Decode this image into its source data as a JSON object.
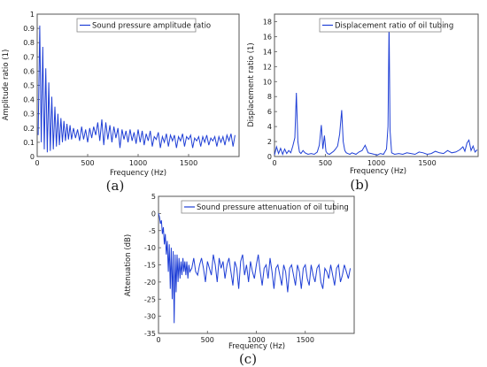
{
  "chart_data": [
    {
      "id": "a",
      "type": "line",
      "caption": "(a)",
      "xlabel": "Frequency (Hz)",
      "ylabel": "Amplitude ratio (1)",
      "xlim": [
        0,
        2000
      ],
      "ylim": [
        0,
        1
      ],
      "xticks": [
        0,
        500,
        1000,
        1500
      ],
      "yticks": [
        0,
        0.1,
        0.2,
        0.3,
        0.4,
        0.5,
        0.6,
        0.7,
        0.8,
        0.9,
        1
      ],
      "yticklabels": [
        "0",
        "0.1",
        "0.2",
        "0.3",
        "0.4",
        "0.5",
        "0.6",
        "0.7",
        "0.8",
        "0.9",
        "1"
      ],
      "legend_position": "top-right",
      "series": [
        {
          "name": "Sound pressure amplitude ratio",
          "color": "#1f3fd6",
          "x": [
            10,
            25,
            40,
            55,
            70,
            85,
            100,
            115,
            130,
            145,
            160,
            175,
            190,
            205,
            220,
            235,
            250,
            265,
            280,
            295,
            310,
            325,
            340,
            360,
            380,
            400,
            420,
            440,
            460,
            480,
            500,
            520,
            540,
            560,
            580,
            600,
            620,
            640,
            660,
            680,
            700,
            720,
            740,
            760,
            780,
            800,
            820,
            840,
            860,
            880,
            900,
            920,
            940,
            960,
            980,
            1000,
            1020,
            1040,
            1060,
            1080,
            1100,
            1120,
            1140,
            1160,
            1180,
            1200,
            1220,
            1240,
            1260,
            1280,
            1300,
            1320,
            1340,
            1360,
            1380,
            1400,
            1420,
            1440,
            1460,
            1480,
            1500,
            1520,
            1540,
            1560,
            1580,
            1600,
            1620,
            1640,
            1660,
            1680,
            1700,
            1720,
            1740,
            1760,
            1780,
            1800,
            1820,
            1840,
            1860,
            1880,
            1900,
            1920,
            1940,
            1960
          ],
          "y": [
            0.15,
            0.92,
            0.1,
            0.77,
            0.05,
            0.62,
            0.03,
            0.52,
            0.04,
            0.42,
            0.05,
            0.35,
            0.07,
            0.3,
            0.08,
            0.27,
            0.1,
            0.25,
            0.11,
            0.23,
            0.12,
            0.22,
            0.12,
            0.2,
            0.13,
            0.19,
            0.11,
            0.21,
            0.12,
            0.19,
            0.1,
            0.2,
            0.13,
            0.21,
            0.15,
            0.24,
            0.11,
            0.26,
            0.08,
            0.24,
            0.12,
            0.22,
            0.1,
            0.21,
            0.13,
            0.2,
            0.06,
            0.19,
            0.12,
            0.18,
            0.1,
            0.19,
            0.11,
            0.17,
            0.09,
            0.19,
            0.1,
            0.18,
            0.08,
            0.16,
            0.11,
            0.18,
            0.07,
            0.14,
            0.12,
            0.17,
            0.06,
            0.14,
            0.1,
            0.16,
            0.07,
            0.15,
            0.11,
            0.15,
            0.06,
            0.14,
            0.11,
            0.16,
            0.07,
            0.14,
            0.12,
            0.15,
            0.06,
            0.13,
            0.11,
            0.14,
            0.07,
            0.14,
            0.1,
            0.15,
            0.08,
            0.13,
            0.11,
            0.14,
            0.07,
            0.14,
            0.1,
            0.14,
            0.08,
            0.15,
            0.11,
            0.16,
            0.07,
            0.15
          ]
        }
      ]
    },
    {
      "id": "b",
      "type": "line",
      "caption": "(b)",
      "xlabel": "Frequency (Hz)",
      "ylabel": "Displacement ratio (1)",
      "xlim": [
        0,
        2000
      ],
      "ylim": [
        0,
        19
      ],
      "xticks": [
        0,
        500,
        1000,
        1500
      ],
      "yticks": [
        0,
        2,
        4,
        6,
        8,
        10,
        12,
        14,
        16,
        18
      ],
      "yticklabels": [
        "0",
        "2",
        "4",
        "6",
        "8",
        "10",
        "12",
        "14",
        "16",
        "18"
      ],
      "legend_position": "top-right",
      "series": [
        {
          "name": "Displacement ratio of oil tubing",
          "color": "#1f3fd6",
          "x": [
            0,
            20,
            40,
            60,
            80,
            100,
            120,
            140,
            160,
            180,
            200,
            215,
            230,
            245,
            260,
            280,
            300,
            330,
            360,
            390,
            420,
            440,
            460,
            475,
            490,
            505,
            520,
            540,
            560,
            580,
            600,
            620,
            640,
            660,
            675,
            690,
            705,
            720,
            740,
            760,
            780,
            800,
            830,
            860,
            890,
            920,
            950,
            980,
            1010,
            1040,
            1070,
            1100,
            1115,
            1125,
            1135,
            1150,
            1180,
            1220,
            1260,
            1300,
            1340,
            1380,
            1420,
            1460,
            1500,
            1540,
            1580,
            1620,
            1660,
            1700,
            1740,
            1780,
            1820,
            1850,
            1870,
            1890,
            1910,
            1930,
            1950,
            1970,
            1990
          ],
          "y": [
            0.2,
            1.3,
            0.4,
            1.1,
            0.3,
            1.0,
            0.4,
            0.8,
            0.5,
            1.4,
            2.5,
            8.5,
            2.0,
            0.6,
            0.4,
            0.8,
            0.5,
            0.3,
            0.4,
            0.3,
            0.6,
            1.5,
            4.2,
            1.0,
            2.8,
            0.7,
            0.4,
            0.3,
            0.5,
            0.7,
            1.0,
            1.4,
            3.0,
            6.2,
            2.0,
            0.8,
            0.5,
            0.4,
            0.3,
            0.5,
            0.4,
            0.3,
            0.6,
            0.8,
            1.5,
            0.5,
            0.4,
            0.3,
            0.2,
            0.4,
            0.3,
            1.0,
            4.0,
            18.0,
            3.5,
            0.5,
            0.3,
            0.4,
            0.3,
            0.5,
            0.4,
            0.3,
            0.6,
            0.5,
            0.3,
            0.4,
            0.7,
            0.5,
            0.4,
            0.8,
            0.5,
            0.6,
            0.9,
            1.3,
            0.7,
            1.8,
            2.2,
            0.8,
            1.4,
            0.6,
            0.9
          ]
        }
      ]
    },
    {
      "id": "c",
      "type": "line",
      "caption": "(c)",
      "xlabel": "Frequency (Hz)",
      "ylabel": "Attenuation (dB)",
      "xlim": [
        0,
        2000
      ],
      "ylim": [
        -35,
        5
      ],
      "xticks": [
        0,
        500,
        1000,
        1500
      ],
      "yticks": [
        5,
        0,
        -5,
        -10,
        -15,
        -20,
        -25,
        -30,
        -35
      ],
      "yticklabels": [
        "5",
        "0",
        "-5",
        "-10",
        "-15",
        "-20",
        "-25",
        "-30",
        "-35"
      ],
      "legend_position": "top-right",
      "series": [
        {
          "name": "Sound pressure attenuation  of oil tubing",
          "color": "#1f3fd6",
          "x": [
            0,
            10,
            20,
            30,
            40,
            50,
            60,
            70,
            80,
            90,
            100,
            110,
            120,
            130,
            140,
            150,
            160,
            170,
            180,
            190,
            200,
            210,
            220,
            230,
            240,
            250,
            260,
            270,
            280,
            290,
            300,
            310,
            320,
            340,
            360,
            380,
            400,
            420,
            440,
            460,
            480,
            500,
            520,
            540,
            560,
            580,
            600,
            620,
            640,
            660,
            680,
            700,
            720,
            740,
            760,
            780,
            800,
            820,
            840,
            860,
            880,
            900,
            920,
            940,
            960,
            980,
            1000,
            1020,
            1040,
            1060,
            1080,
            1100,
            1120,
            1140,
            1160,
            1180,
            1200,
            1220,
            1240,
            1260,
            1280,
            1300,
            1320,
            1340,
            1360,
            1380,
            1400,
            1420,
            1440,
            1460,
            1480,
            1500,
            1520,
            1540,
            1560,
            1580,
            1600,
            1620,
            1640,
            1660,
            1680,
            1700,
            1720,
            1740,
            1760,
            1780,
            1800,
            1820,
            1840,
            1860,
            1880,
            1900,
            1920,
            1940,
            1960
          ],
          "y": [
            0,
            -1,
            -3,
            -2,
            -6,
            -4,
            -9,
            -6,
            -12,
            -8,
            -17,
            -9,
            -22,
            -10,
            -25,
            -11,
            -32,
            -12,
            -23,
            -12,
            -20,
            -13,
            -19,
            -14,
            -18,
            -13,
            -17,
            -14,
            -18,
            -14,
            -19,
            -15,
            -17,
            -16,
            -13,
            -17,
            -18,
            -15,
            -13,
            -16,
            -20,
            -14,
            -16,
            -18,
            -12,
            -15,
            -20,
            -13,
            -16,
            -14,
            -19,
            -15,
            -13,
            -17,
            -21,
            -14,
            -16,
            -22,
            -14,
            -12,
            -18,
            -15,
            -20,
            -14,
            -17,
            -19,
            -15,
            -12,
            -17,
            -21,
            -16,
            -15,
            -19,
            -13,
            -17,
            -22,
            -16,
            -15,
            -18,
            -21,
            -15,
            -17,
            -23,
            -16,
            -15,
            -18,
            -21,
            -15,
            -17,
            -22,
            -16,
            -15,
            -19,
            -21,
            -15,
            -18,
            -20,
            -16,
            -15,
            -20,
            -22,
            -16,
            -17,
            -19,
            -15,
            -18,
            -21,
            -16,
            -15,
            -20,
            -18,
            -15,
            -17,
            -19,
            -16
          ]
        }
      ]
    }
  ]
}
